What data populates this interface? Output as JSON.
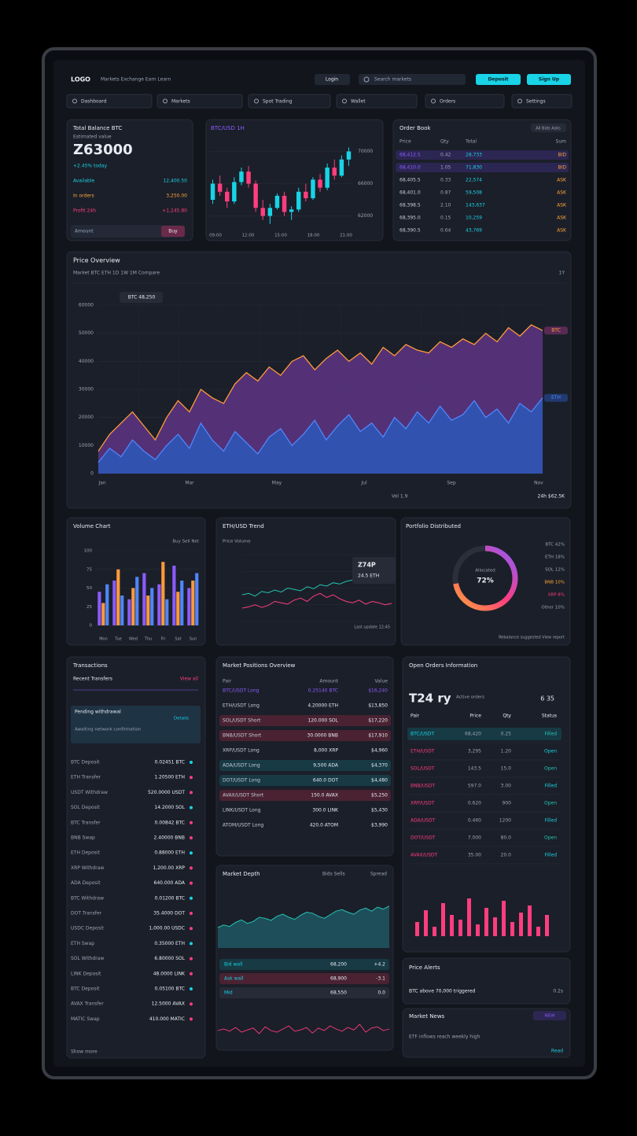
{
  "header": {
    "logo": "LOGO",
    "links": "Markets  Exchange  Earn  Learn",
    "login": "Login",
    "search": "Search markets",
    "buttons": [
      "Deposit",
      "Sign Up"
    ]
  },
  "nav": [
    "Dashboard",
    "Markets",
    "Spot Trading",
    "Wallet",
    "Orders",
    "Settings"
  ],
  "balance": {
    "title": "Total Balance  BTC",
    "subtitle": "Estimated value",
    "amount": "Z63000",
    "change": "+2.45% today",
    "rows": [
      [
        "Available",
        "12,400.50"
      ],
      [
        "In orders",
        "3,250.00"
      ],
      [
        "Profit 24h",
        "+1,245.80"
      ]
    ],
    "input": "Amount",
    "action": "Buy"
  },
  "candles": {
    "title": "BTC/USD  1H",
    "ylim": [
      60000,
      72000
    ],
    "yticks": [
      62000,
      66000,
      70000
    ],
    "ohlc": [
      [
        64000,
        66500,
        63500,
        66000
      ],
      [
        66000,
        67000,
        64500,
        65000
      ],
      [
        65000,
        65500,
        63000,
        63800
      ],
      [
        63800,
        66800,
        63500,
        66200
      ],
      [
        66200,
        68000,
        65800,
        67500
      ],
      [
        67500,
        68200,
        65500,
        66000
      ],
      [
        66000,
        66400,
        62500,
        63000
      ],
      [
        63000,
        64000,
        61500,
        62000
      ],
      [
        62000,
        63500,
        61000,
        63000
      ],
      [
        63000,
        64800,
        62800,
        64500
      ],
      [
        64500,
        65000,
        62000,
        62500
      ],
      [
        62500,
        63200,
        61500,
        62800
      ],
      [
        62800,
        65500,
        62500,
        65000
      ],
      [
        65000,
        66000,
        63800,
        64200
      ],
      [
        64200,
        66800,
        64000,
        66500
      ],
      [
        66500,
        67200,
        65000,
        65500
      ],
      [
        65500,
        68500,
        65200,
        68000
      ],
      [
        68000,
        69000,
        66500,
        67000
      ],
      [
        67000,
        69500,
        66800,
        69000
      ],
      [
        69000,
        70500,
        68200,
        70000
      ]
    ],
    "axis_labels": [
      "09:00",
      "12:00",
      "15:00",
      "18:00",
      "21:00"
    ]
  },
  "order_book": {
    "title": "Order Book",
    "filter": "All  Bids  Asks",
    "columns": [
      "Price",
      "Qty",
      "Total",
      "Sum"
    ],
    "rows": [
      [
        "68,412.5",
        "0.42",
        "28,733",
        "BID"
      ],
      [
        "68,410.0",
        "1.05",
        "71,830",
        "BID"
      ],
      [
        "68,405.5",
        "0.33",
        "22,574",
        "ASK"
      ],
      [
        "68,401.0",
        "0.87",
        "59,508",
        "ASK"
      ],
      [
        "68,398.5",
        "2.10",
        "143,637",
        "ASK"
      ],
      [
        "68,395.0",
        "0.15",
        "10,259",
        "ASK"
      ],
      [
        "68,390.5",
        "0.64",
        "43,769",
        "ASK"
      ]
    ]
  },
  "price_chart": {
    "title": "Price Overview",
    "filters": "Market   BTC   ETH   1D  1W  1M   Compare",
    "range": "1Y",
    "tooltip": "BTC 48,250",
    "ylim": [
      0,
      60000
    ],
    "yticks": [
      0,
      10000,
      20000,
      30000,
      40000,
      50000,
      60000
    ],
    "series": [
      {
        "name": "BTC",
        "color": "#ff9a3c",
        "fill": "#5e3584",
        "values": [
          8000,
          14000,
          18000,
          22000,
          17000,
          12000,
          20000,
          26000,
          22000,
          30000,
          27000,
          25000,
          32000,
          36000,
          33000,
          38000,
          35000,
          40000,
          42000,
          37000,
          41000,
          44000,
          40000,
          43000,
          39000,
          45000,
          42000,
          46000,
          44000,
          43000,
          47000,
          45000,
          48000,
          46000,
          50000,
          47000,
          52000,
          49000,
          53000,
          51000
        ]
      },
      {
        "name": "ETH",
        "color": "#4f86ff",
        "fill": "#2b58b8",
        "values": [
          4000,
          9000,
          6000,
          12000,
          8000,
          5000,
          10000,
          14000,
          9000,
          18000,
          12000,
          8000,
          15000,
          11000,
          7000,
          13000,
          16000,
          10000,
          14000,
          19000,
          12000,
          17000,
          21000,
          15000,
          18000,
          13000,
          20000,
          16000,
          22000,
          18000,
          24000,
          19000,
          21000,
          26000,
          20000,
          23000,
          18000,
          25000,
          22000,
          27000
        ]
      }
    ],
    "axis_labels": [
      "Jan",
      "Mar",
      "May",
      "Jul",
      "Sep",
      "Nov"
    ],
    "footer": [
      "Vol 1.9",
      "24h  $62.5K"
    ]
  },
  "volume": {
    "title": "Volume Chart",
    "legend": "Buy  Sell  Net",
    "categories": [
      "Mon",
      "Tue",
      "Wed",
      "Thu",
      "Fri",
      "Sat",
      "Sun"
    ],
    "ylim": [
      0,
      100
    ],
    "yticks": [
      0,
      25,
      50,
      75,
      100
    ],
    "series": [
      {
        "name": "Buy",
        "color": "#8a5cff",
        "values": [
          45,
          60,
          35,
          70,
          55,
          80,
          50
        ]
      },
      {
        "name": "Sell",
        "color": "#ff9a3c",
        "values": [
          30,
          75,
          50,
          40,
          85,
          45,
          60
        ]
      },
      {
        "name": "Net",
        "color": "#4f86ff",
        "values": [
          55,
          40,
          65,
          50,
          35,
          60,
          70
        ]
      }
    ]
  },
  "market": {
    "title": "ETH/USD  Trend",
    "legend": "Price  Volume",
    "ylim": [
      0,
      100
    ],
    "tooltip": [
      "Z74P",
      "24.5 ETH"
    ],
    "footer": "Last update 12:45",
    "series": [
      {
        "name": "Price",
        "color": "#22c5b5",
        "values": [
          40,
          42,
          38,
          45,
          43,
          47,
          44,
          50,
          48,
          46,
          52,
          49,
          55,
          53,
          58,
          56,
          60,
          62,
          59,
          65,
          63,
          68,
          70,
          72
        ]
      },
      {
        "name": "Volume",
        "color": "#ff3d7f",
        "values": [
          20,
          22,
          25,
          21,
          24,
          30,
          28,
          26,
          32,
          35,
          30,
          38,
          42,
          36,
          40,
          34,
          30,
          28,
          32,
          26,
          30,
          28,
          25,
          27
        ]
      }
    ]
  },
  "allocation": {
    "title": "Portfolio Distributed",
    "caption": "Allocated",
    "share": {
      "value": 72,
      "label": "72%"
    },
    "legend": [
      "BTC 42%",
      "ETH 18%",
      "SOL 12%",
      "BNB 10%",
      "XRP 8%",
      "Other 10%"
    ],
    "footer": "Rebalance suggested  View report"
  },
  "transactions": {
    "title": "Transactions",
    "subtitle": "Recent Transfers",
    "link": "View all",
    "box": [
      "Pending withdrawal",
      "Awaiting network confirmation",
      "Details"
    ],
    "rows": [
      [
        "BTC Deposit",
        "0.02451 BTC"
      ],
      [
        "ETH Transfer",
        "1.20500 ETH"
      ],
      [
        "USDT Withdraw",
        "520.0000 USDT"
      ],
      [
        "SOL Deposit",
        "14.2000 SOL"
      ],
      [
        "BTC Transfer",
        "0.00842 BTC"
      ],
      [
        "BNB Swap",
        "2.40000 BNB"
      ],
      [
        "ETH Deposit",
        "0.88000 ETH"
      ],
      [
        "XRP Withdraw",
        "1,200.00 XRP"
      ],
      [
        "ADA Deposit",
        "640.000 ADA"
      ],
      [
        "BTC Withdraw",
        "0.01200 BTC"
      ],
      [
        "DOT Transfer",
        "35.4000 DOT"
      ],
      [
        "USDC Deposit",
        "1,000.00 USDC"
      ],
      [
        "ETH Swap",
        "0.35000 ETH"
      ],
      [
        "SOL Withdraw",
        "6.80000 SOL"
      ],
      [
        "LINK Deposit",
        "48.0000 LINK"
      ],
      [
        "BTC Deposit",
        "0.05100 BTC"
      ],
      [
        "AVAX Transfer",
        "12.5000 AVAX"
      ],
      [
        "MATIC Swap",
        "410.000 MATIC"
      ]
    ],
    "more": "Show more"
  },
  "positions": {
    "title": "Market Positions Overview",
    "columns": [
      "Pair",
      "Amount",
      "Value"
    ],
    "rows": [
      [
        "BTC/USDT Long",
        "0.25140 BTC",
        "$16,240"
      ],
      [
        "ETH/USDT Long",
        "4.20000 ETH",
        "$13,850"
      ],
      [
        "SOL/USDT Short",
        "120.000 SOL",
        "$17,220"
      ],
      [
        "BNB/USDT Short",
        "30.0000 BNB",
        "$17,910"
      ],
      [
        "XRP/USDT Long",
        "8,000 XRP",
        "$4,960"
      ],
      [
        "ADA/USDT Long",
        "9,500 ADA",
        "$4,370"
      ],
      [
        "DOT/USDT Long",
        "640.0 DOT",
        "$4,480"
      ],
      [
        "AVAX/USDT Short",
        "150.0 AVAX",
        "$5,250"
      ],
      [
        "LINK/USDT Long",
        "300.0 LINK",
        "$5,430"
      ],
      [
        "ATOM/USDT Long",
        "420.0 ATOM",
        "$3,990"
      ]
    ]
  },
  "depth": {
    "title": "Market Depth",
    "headers": [
      "Bids Sells",
      "Spread"
    ],
    "ylim": [
      0,
      100
    ],
    "values": [
      40,
      45,
      42,
      50,
      55,
      48,
      52,
      60,
      58,
      54,
      62,
      66,
      60,
      56,
      64,
      70,
      68,
      62,
      58,
      65,
      72,
      75,
      70,
      66,
      74,
      78,
      72,
      80,
      76,
      82
    ],
    "flow": [
      50,
      55,
      48,
      60,
      45,
      52,
      58,
      40,
      62,
      50,
      45,
      55,
      65,
      48,
      52,
      60,
      42,
      58,
      50,
      65,
      55,
      48,
      60,
      52,
      70,
      45,
      58,
      62,
      50,
      55
    ],
    "rows": [
      [
        "Bid wall",
        "68,200",
        "+4.2"
      ],
      [
        "Ask wall",
        "68,900",
        "-3.1"
      ],
      [
        "Mid",
        "68,550",
        "0.0"
      ]
    ]
  },
  "orders": {
    "title": "Open Orders Information",
    "big": "T24 ry",
    "note": "Active orders",
    "count": "6 35",
    "columns": [
      "Pair",
      "Price",
      "Qty",
      "Status"
    ],
    "rows": [
      [
        "BTC/USDT",
        "68,420",
        "0.25",
        "Filled"
      ],
      [
        "ETH/USDT",
        "3,295",
        "1.20",
        "Open"
      ],
      [
        "SOL/USDT",
        "143.5",
        "15.0",
        "Open"
      ],
      [
        "BNB/USDT",
        "597.0",
        "3.00",
        "Filled"
      ],
      [
        "XRP/USDT",
        "0.620",
        "900",
        "Open"
      ],
      [
        "ADA/USDT",
        "0.460",
        "1200",
        "Filled"
      ],
      [
        "DOT/USDT",
        "7.000",
        "80.0",
        "Open"
      ],
      [
        "AVAX/USDT",
        "35.00",
        "20.0",
        "Filled"
      ]
    ],
    "activity": {
      "color": "#ff3d7f",
      "values": [
        30,
        55,
        20,
        70,
        45,
        35,
        80,
        25,
        60,
        40,
        75,
        30,
        50,
        65,
        20,
        45
      ]
    }
  },
  "alerts": {
    "title": "Price Alerts",
    "text": "BTC above 70,000 triggered",
    "time": "0.2s"
  },
  "news": {
    "title": "Market News",
    "badge": "NEW",
    "text": "ETF inflows reach weekly high",
    "more": "Read"
  }
}
